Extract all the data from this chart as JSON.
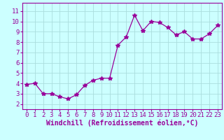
{
  "x": [
    0,
    1,
    2,
    3,
    4,
    5,
    6,
    7,
    8,
    9,
    10,
    11,
    12,
    13,
    14,
    15,
    16,
    17,
    18,
    19,
    20,
    21,
    22,
    23
  ],
  "y": [
    3.9,
    4.0,
    3.0,
    3.0,
    2.7,
    2.5,
    2.9,
    3.8,
    4.3,
    4.5,
    4.5,
    7.7,
    8.5,
    10.6,
    9.1,
    10.0,
    9.9,
    9.4,
    8.7,
    9.0,
    8.3,
    8.3,
    8.8,
    9.6
  ],
  "line_color": "#990099",
  "marker": "*",
  "marker_size": 4,
  "bg_color": "#ccffff",
  "grid_color": "#aadddd",
  "xlabel": "Windchill (Refroidissement éolien,°C)",
  "yticks": [
    2,
    3,
    4,
    5,
    6,
    7,
    8,
    9,
    10,
    11
  ],
  "xlim": [
    -0.5,
    23.5
  ],
  "ylim": [
    1.5,
    11.8
  ],
  "xlabel_color": "#990099",
  "tick_color": "#990099",
  "tick_fontsize": 6.5,
  "xlabel_fontsize": 7.0
}
